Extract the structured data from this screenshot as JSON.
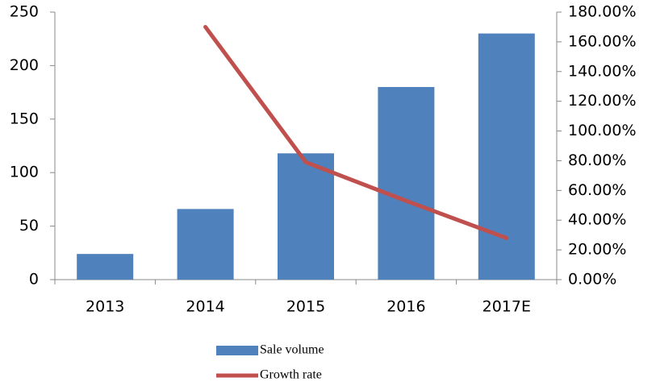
{
  "chart_data": {
    "type": "bar_line",
    "categories": [
      "2013",
      "2014",
      "2015",
      "2016",
      "2017E"
    ],
    "series": [
      {
        "name": "Sale volume",
        "type": "bar",
        "color": "#4f81bd",
        "values": [
          24,
          66,
          118,
          180,
          230
        ]
      },
      {
        "name": "Growth rate",
        "type": "line",
        "axis": "y2",
        "color": "#c0504d",
        "values": [
          null,
          170,
          79,
          53,
          28
        ]
      }
    ],
    "ylim": [
      0,
      250
    ],
    "yticks": [
      0,
      50,
      100,
      150,
      200,
      250
    ],
    "y2lim": [
      0,
      180
    ],
    "y2ticks": [
      {
        "value": 0,
        "label": "0.00%"
      },
      {
        "value": 20,
        "label": "20.00%"
      },
      {
        "value": 40,
        "label": "40.00%"
      },
      {
        "value": 60,
        "label": "60.00%"
      },
      {
        "value": 80,
        "label": "80.00%"
      },
      {
        "value": 100,
        "label": "100.00%"
      },
      {
        "value": 120,
        "label": "120.00%"
      },
      {
        "value": 140,
        "label": "140.00%"
      },
      {
        "value": 160,
        "label": "160.00%"
      },
      {
        "value": 180,
        "label": "180.00%"
      }
    ],
    "legend": "bottom"
  }
}
